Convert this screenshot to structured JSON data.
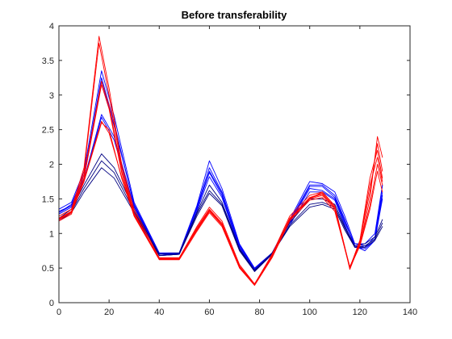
{
  "chart_data": {
    "type": "line",
    "title": "Before transferability",
    "xlabel": "",
    "ylabel": "",
    "xlim": [
      0,
      140
    ],
    "ylim": [
      0,
      4
    ],
    "xticks": [
      0,
      20,
      40,
      60,
      80,
      100,
      120,
      140
    ],
    "yticks": [
      0,
      0.5,
      1,
      1.5,
      2,
      2.5,
      3,
      3.5,
      4
    ],
    "xtick_labels": [
      "0",
      "20",
      "40",
      "60",
      "80",
      "100",
      "120",
      "140"
    ],
    "ytick_labels": [
      "0",
      "0.5",
      "1",
      "1.5",
      "2",
      "2.5",
      "3",
      "3.5",
      "4"
    ],
    "grid": false,
    "legend": false,
    "colors": {
      "blue": "#0000ff",
      "red": "#ff0000",
      "navy": "#000080"
    },
    "series": [
      {
        "color": "#0000ff",
        "x": [
          0,
          5,
          10,
          17,
          22,
          30,
          40,
          48,
          55,
          60,
          65,
          72,
          78,
          85,
          92,
          100,
          105,
          110,
          114,
          118,
          122,
          126,
          129
        ],
        "y": [
          1.35,
          1.45,
          1.9,
          3.35,
          2.7,
          1.45,
          0.72,
          0.72,
          1.4,
          2.05,
          1.65,
          0.85,
          0.5,
          0.72,
          1.2,
          1.75,
          1.72,
          1.6,
          1.25,
          0.85,
          0.85,
          1.0,
          1.7
        ]
      },
      {
        "color": "#0000ff",
        "x": [
          0,
          5,
          10,
          17,
          22,
          30,
          40,
          48,
          55,
          60,
          65,
          72,
          78,
          85,
          92,
          100,
          105,
          110,
          114,
          118,
          122,
          126,
          129
        ],
        "y": [
          1.3,
          1.42,
          1.85,
          3.25,
          2.6,
          1.4,
          0.7,
          0.7,
          1.38,
          1.95,
          1.6,
          0.82,
          0.48,
          0.7,
          1.18,
          1.7,
          1.7,
          1.55,
          1.2,
          0.82,
          0.8,
          0.95,
          1.6
        ]
      },
      {
        "color": "#0000ff",
        "x": [
          0,
          5,
          10,
          17,
          22,
          30,
          40,
          48,
          55,
          60,
          65,
          72,
          78,
          85,
          92,
          100,
          105,
          110,
          114,
          118,
          122,
          126,
          129
        ],
        "y": [
          1.3,
          1.4,
          1.78,
          2.72,
          2.4,
          1.38,
          0.7,
          0.72,
          1.35,
          1.88,
          1.55,
          0.8,
          0.47,
          0.72,
          1.15,
          1.65,
          1.62,
          1.5,
          1.15,
          0.85,
          0.82,
          0.92,
          1.55
        ]
      },
      {
        "color": "#0000ff",
        "x": [
          0,
          5,
          10,
          17,
          22,
          30,
          40,
          48,
          55,
          60,
          65,
          72,
          78,
          85,
          92,
          100,
          105,
          110,
          114,
          118,
          122,
          126,
          129
        ],
        "y": [
          1.28,
          1.38,
          1.75,
          2.68,
          2.35,
          1.35,
          0.68,
          0.7,
          1.32,
          1.82,
          1.52,
          0.78,
          0.45,
          0.7,
          1.12,
          1.6,
          1.6,
          1.48,
          1.12,
          0.8,
          0.78,
          0.9,
          1.5
        ]
      },
      {
        "color": "#0000ff",
        "x": [
          0,
          5,
          10,
          17,
          22,
          30,
          40,
          48,
          55,
          60,
          65,
          72,
          78,
          85,
          92,
          100,
          105,
          110,
          114,
          118,
          122,
          126,
          129
        ],
        "y": [
          1.32,
          1.4,
          1.8,
          3.2,
          2.55,
          1.42,
          0.71,
          0.71,
          1.36,
          1.9,
          1.58,
          0.83,
          0.49,
          0.71,
          1.16,
          1.68,
          1.68,
          1.52,
          1.18,
          0.82,
          0.75,
          0.9,
          1.7
        ]
      },
      {
        "color": "#000080",
        "x": [
          0,
          5,
          10,
          17,
          22,
          30,
          40,
          48,
          55,
          60,
          65,
          72,
          78,
          85,
          92,
          100,
          105,
          110,
          114,
          118,
          122,
          126,
          129
        ],
        "y": [
          1.22,
          1.35,
          1.7,
          2.15,
          1.95,
          1.35,
          0.7,
          0.72,
          1.3,
          1.7,
          1.45,
          0.78,
          0.47,
          0.72,
          1.15,
          1.5,
          1.5,
          1.42,
          1.1,
          0.82,
          0.85,
          0.95,
          1.2
        ]
      },
      {
        "color": "#000080",
        "x": [
          0,
          5,
          10,
          17,
          22,
          30,
          40,
          48,
          55,
          60,
          65,
          72,
          78,
          85,
          92,
          100,
          105,
          110,
          114,
          118,
          122,
          126,
          129
        ],
        "y": [
          1.2,
          1.32,
          1.65,
          2.05,
          1.88,
          1.32,
          0.68,
          0.7,
          1.28,
          1.62,
          1.42,
          0.76,
          0.46,
          0.7,
          1.12,
          1.42,
          1.45,
          1.38,
          1.08,
          0.8,
          0.82,
          0.92,
          1.15
        ]
      },
      {
        "color": "#000080",
        "x": [
          0,
          5,
          10,
          17,
          22,
          30,
          40,
          48,
          55,
          60,
          65,
          72,
          78,
          85,
          92,
          100,
          105,
          110,
          114,
          118,
          122,
          126,
          129
        ],
        "y": [
          1.18,
          1.3,
          1.6,
          1.95,
          1.8,
          1.3,
          0.68,
          0.7,
          1.25,
          1.58,
          1.4,
          0.75,
          0.45,
          0.7,
          1.1,
          1.38,
          1.42,
          1.35,
          1.05,
          0.8,
          0.8,
          0.9,
          1.1
        ]
      },
      {
        "color": "#ff0000",
        "x": [
          0,
          5,
          10,
          16,
          20,
          25,
          30,
          40,
          48,
          55,
          60,
          65,
          72,
          78,
          85,
          92,
          100,
          105,
          110,
          114,
          116,
          120,
          124,
          127,
          129
        ],
        "y": [
          1.25,
          1.35,
          1.95,
          3.85,
          3.1,
          2.0,
          1.35,
          0.65,
          0.65,
          1.1,
          1.38,
          1.18,
          0.55,
          0.27,
          0.7,
          1.25,
          1.55,
          1.6,
          1.4,
          0.8,
          0.48,
          0.85,
          1.5,
          2.4,
          2.1
        ]
      },
      {
        "color": "#ff0000",
        "x": [
          0,
          5,
          10,
          16,
          20,
          25,
          30,
          40,
          48,
          55,
          60,
          65,
          72,
          78,
          85,
          92,
          100,
          105,
          110,
          114,
          116,
          120,
          124,
          127,
          129
        ],
        "y": [
          1.22,
          1.32,
          1.9,
          3.75,
          3.0,
          1.95,
          1.3,
          0.63,
          0.63,
          1.08,
          1.35,
          1.15,
          0.53,
          0.26,
          0.68,
          1.22,
          1.52,
          1.58,
          1.38,
          0.78,
          0.5,
          0.9,
          1.6,
          2.3,
          1.9
        ]
      },
      {
        "color": "#ff0000",
        "x": [
          0,
          5,
          10,
          17,
          20,
          25,
          30,
          40,
          48,
          55,
          60,
          65,
          72,
          78,
          85,
          92,
          100,
          105,
          110,
          114,
          116,
          120,
          124,
          127,
          129
        ],
        "y": [
          1.2,
          1.3,
          1.85,
          3.2,
          2.85,
          1.9,
          1.28,
          0.64,
          0.64,
          1.05,
          1.32,
          1.12,
          0.52,
          0.27,
          0.66,
          1.2,
          1.5,
          1.55,
          1.35,
          0.8,
          0.52,
          0.85,
          1.4,
          2.0,
          1.7
        ]
      },
      {
        "color": "#ff0000",
        "x": [
          0,
          5,
          10,
          17,
          20,
          25,
          30,
          40,
          48,
          55,
          60,
          65,
          72,
          78,
          85,
          92,
          100,
          105,
          110,
          114,
          116,
          120,
          124,
          127,
          129
        ],
        "y": [
          1.18,
          1.28,
          1.8,
          3.15,
          2.8,
          1.88,
          1.25,
          0.62,
          0.62,
          1.03,
          1.3,
          1.1,
          0.5,
          0.25,
          0.65,
          1.18,
          1.48,
          1.52,
          1.32,
          0.78,
          0.5,
          0.82,
          1.35,
          1.9,
          1.6
        ]
      },
      {
        "color": "#ff0000",
        "x": [
          0,
          5,
          10,
          17,
          20,
          25,
          30,
          40,
          48,
          55,
          60,
          65,
          72,
          78,
          85,
          92,
          100,
          105,
          110,
          114,
          116,
          120,
          124,
          127,
          129
        ],
        "y": [
          1.2,
          1.3,
          1.75,
          2.6,
          2.5,
          1.8,
          1.25,
          0.63,
          0.65,
          1.05,
          1.33,
          1.12,
          0.52,
          0.26,
          0.66,
          1.2,
          1.5,
          1.6,
          1.4,
          0.8,
          0.5,
          0.9,
          1.8,
          2.2,
          1.8
        ]
      },
      {
        "color": "#ff0000",
        "x": [
          0,
          5,
          10,
          17,
          20,
          25,
          30,
          40,
          48,
          55,
          60,
          65,
          72,
          78,
          85,
          92,
          100,
          105,
          110,
          114,
          116,
          120,
          124,
          127,
          129
        ],
        "y": [
          1.21,
          1.31,
          1.78,
          2.62,
          2.45,
          1.82,
          1.26,
          0.64,
          0.64,
          1.06,
          1.34,
          1.13,
          0.51,
          0.27,
          0.67,
          1.21,
          1.51,
          1.57,
          1.37,
          0.79,
          0.51,
          0.88,
          1.7,
          2.1,
          1.75
        ]
      }
    ]
  }
}
